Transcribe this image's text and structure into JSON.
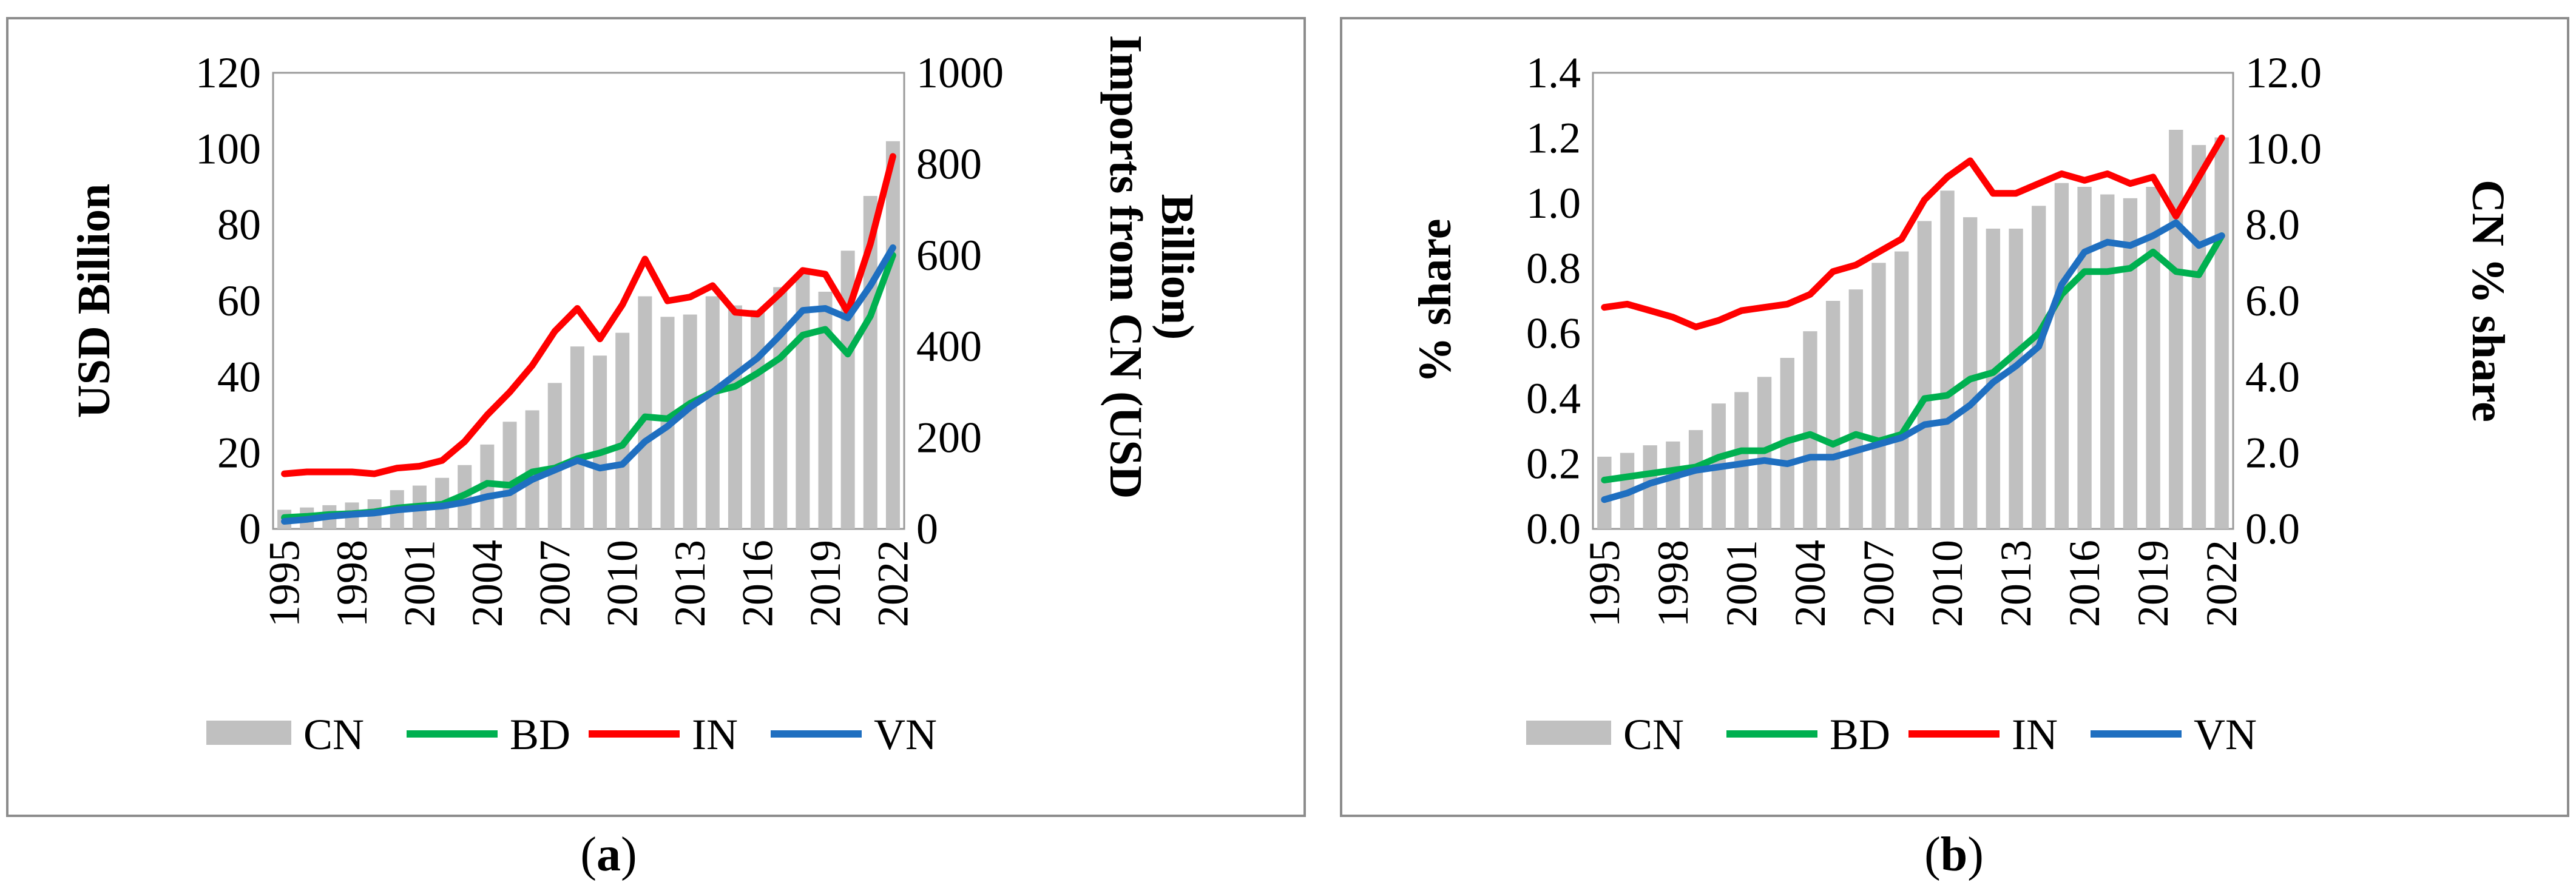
{
  "colors": {
    "CN": "#c0c0c0",
    "BD": "#00b050",
    "IN": "#ff0000",
    "VN": "#1f6fc0"
  },
  "chart_data": [
    {
      "type": "bar+line",
      "panel": "a",
      "caption_letter": "a",
      "ylabel": "USD Billion",
      "y2label_line1": "Imports from CN (USD",
      "y2label_line2": "Billion)",
      "ylim": [
        0,
        120
      ],
      "y2lim": [
        0,
        1000
      ],
      "yticks": [
        "0",
        "20",
        "40",
        "60",
        "80",
        "100",
        "120"
      ],
      "y2ticks": [
        "0",
        "200",
        "400",
        "600",
        "800",
        "1000"
      ],
      "years": [
        1995,
        1996,
        1997,
        1998,
        1999,
        2000,
        2001,
        2002,
        2003,
        2004,
        2005,
        2006,
        2007,
        2008,
        2009,
        2010,
        2011,
        2012,
        2013,
        2014,
        2015,
        2016,
        2017,
        2018,
        2019,
        2020,
        2021,
        2022
      ],
      "xticks": [
        "1995",
        "1998",
        "2001",
        "2004",
        "2007",
        "2010",
        "2013",
        "2016",
        "2019",
        "2022"
      ],
      "legend": [
        "CN",
        "BD",
        "IN",
        "VN"
      ],
      "bar_series": {
        "name": "CN",
        "axis": "secondary",
        "values": [
          42,
          47,
          52,
          58,
          65,
          85,
          95,
          112,
          140,
          185,
          235,
          260,
          320,
          400,
          380,
          430,
          510,
          465,
          470,
          510,
          490,
          480,
          530,
          560,
          520,
          610,
          730,
          850
        ]
      },
      "line_series": [
        {
          "name": "BD",
          "values": [
            3,
            3.3,
            3.8,
            4,
            4.5,
            5.5,
            6,
            6.5,
            9,
            12,
            11.5,
            15,
            16,
            18.5,
            20,
            22,
            29.5,
            29,
            33,
            36,
            37.5,
            41,
            45,
            51,
            52.5,
            46,
            56,
            72
          ]
        },
        {
          "name": "IN",
          "values": [
            14.5,
            15,
            15,
            15,
            14.5,
            16,
            16.5,
            18,
            23,
            30,
            36,
            43,
            52,
            58,
            50,
            59,
            71,
            60,
            61,
            64,
            57,
            56.5,
            62,
            68,
            67,
            57,
            75,
            98
          ]
        },
        {
          "name": "VN",
          "values": [
            2,
            2.5,
            3.3,
            3.8,
            4.2,
            5,
            5.5,
            6,
            7,
            8.5,
            9.5,
            13,
            15.5,
            18,
            16,
            17,
            23,
            27,
            32,
            36,
            40.5,
            45,
            51,
            57.5,
            58,
            55.5,
            64,
            74
          ]
        }
      ]
    },
    {
      "type": "bar+line",
      "panel": "b",
      "caption_letter": "b",
      "ylabel": "% share",
      "y2label": "CN % share",
      "ylim": [
        0,
        1.4
      ],
      "y2lim": [
        0,
        12
      ],
      "yticks": [
        "0.0",
        "0.2",
        "0.4",
        "0.6",
        "0.8",
        "1.0",
        "1.2",
        "1.4"
      ],
      "y2ticks": [
        "0.0",
        "2.0",
        "4.0",
        "6.0",
        "8.0",
        "10.0",
        "12.0"
      ],
      "years": [
        1995,
        1996,
        1997,
        1998,
        1999,
        2000,
        2001,
        2002,
        2003,
        2004,
        2005,
        2006,
        2007,
        2008,
        2009,
        2010,
        2011,
        2012,
        2013,
        2014,
        2015,
        2016,
        2017,
        2018,
        2019,
        2020,
        2021,
        2022
      ],
      "xticks": [
        "1995",
        "1998",
        "2001",
        "2004",
        "2007",
        "2010",
        "2013",
        "2016",
        "2019",
        "2022"
      ],
      "legend": [
        "CN",
        "BD",
        "IN",
        "VN"
      ],
      "bar_series": {
        "name": "CN",
        "axis": "secondary",
        "values": [
          1.9,
          2.0,
          2.2,
          2.3,
          2.6,
          3.3,
          3.6,
          4.0,
          4.5,
          5.2,
          6.0,
          6.3,
          7.0,
          7.3,
          8.1,
          8.9,
          8.2,
          7.9,
          7.9,
          8.5,
          9.1,
          9.0,
          8.8,
          8.7,
          9.0,
          10.5,
          10.1,
          10.3
        ]
      },
      "line_series": [
        {
          "name": "BD",
          "values": [
            0.15,
            0.16,
            0.17,
            0.18,
            0.19,
            0.22,
            0.24,
            0.24,
            0.27,
            0.29,
            0.26,
            0.29,
            0.27,
            0.29,
            0.4,
            0.41,
            0.46,
            0.48,
            0.54,
            0.6,
            0.72,
            0.79,
            0.79,
            0.8,
            0.85,
            0.79,
            0.78,
            0.9
          ]
        },
        {
          "name": "IN",
          "values": [
            0.68,
            0.69,
            0.67,
            0.65,
            0.62,
            0.64,
            0.67,
            0.68,
            0.69,
            0.72,
            0.79,
            0.81,
            0.85,
            0.89,
            1.01,
            1.08,
            1.13,
            1.03,
            1.03,
            1.06,
            1.09,
            1.07,
            1.09,
            1.06,
            1.08,
            0.96,
            1.08,
            1.2
          ]
        },
        {
          "name": "VN",
          "values": [
            0.09,
            0.11,
            0.14,
            0.16,
            0.18,
            0.19,
            0.2,
            0.21,
            0.2,
            0.22,
            0.22,
            0.24,
            0.26,
            0.28,
            0.32,
            0.33,
            0.38,
            0.45,
            0.5,
            0.56,
            0.75,
            0.85,
            0.88,
            0.87,
            0.9,
            0.94,
            0.87,
            0.9
          ]
        }
      ]
    }
  ]
}
